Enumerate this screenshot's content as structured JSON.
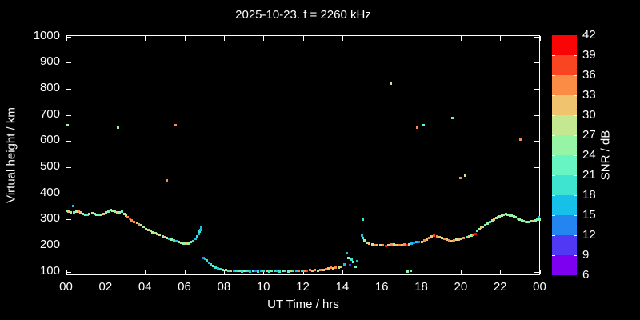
{
  "colors": {
    "background": "#000000",
    "foreground": "#ffffff"
  },
  "chart_data": {
    "type": "scatter",
    "title": "2025-10-23. f = 2260 kHz",
    "xlabel": "UT Time / hrs",
    "ylabel": "Virtual height / km",
    "xlim": [
      0,
      24
    ],
    "ylim": [
      85,
      1000
    ],
    "grid": "off",
    "x_tick_pos": [
      0,
      2,
      4,
      6,
      8,
      10,
      12,
      14,
      16,
      18,
      20,
      22,
      24
    ],
    "x_tick_labels": [
      "00",
      "02",
      "04",
      "06",
      "08",
      "10",
      "12",
      "14",
      "16",
      "18",
      "20",
      "22",
      "00"
    ],
    "y_tick_pos": [
      100,
      200,
      300,
      400,
      500,
      600,
      700,
      800,
      900,
      1000
    ],
    "y_tick_labels": [
      "100",
      "200",
      "300",
      "400",
      "500",
      "600",
      "700",
      "800",
      "900",
      "1000"
    ],
    "colorbar": {
      "label": "SNR / dB",
      "min": 6,
      "max": 42,
      "tick_labels": [
        "6",
        "9",
        "12",
        "15",
        "18",
        "21",
        "24",
        "27",
        "30",
        "33",
        "36",
        "39",
        "42"
      ],
      "segment_colors": [
        "#7d00f0",
        "#5038f5",
        "#2585f0",
        "#17c0e8",
        "#3ee4d0",
        "#68f5c4",
        "#96f5a5",
        "#c3e891",
        "#f0c46e",
        "#fa8c46",
        "#fa4523",
        "#fa0505"
      ]
    },
    "points_format": [
      "ut_hours",
      "virtual_height_km",
      "snr_band_index"
    ],
    "points": [
      [
        0.0,
        334,
        6
      ],
      [
        0.1,
        331,
        8
      ],
      [
        0.22,
        328,
        6
      ],
      [
        0.33,
        350,
        3
      ],
      [
        0.35,
        326,
        5
      ],
      [
        0.48,
        330,
        7
      ],
      [
        0.6,
        331,
        9
      ],
      [
        0.7,
        328,
        8
      ],
      [
        0.82,
        322,
        6
      ],
      [
        0.93,
        317,
        5
      ],
      [
        1.05,
        319,
        4
      ],
      [
        1.15,
        322,
        6
      ],
      [
        1.28,
        324,
        7
      ],
      [
        1.4,
        322,
        5
      ],
      [
        1.52,
        319,
        6
      ],
      [
        1.63,
        317,
        5
      ],
      [
        1.75,
        318,
        6
      ],
      [
        1.88,
        320,
        8
      ],
      [
        2.0,
        326,
        6
      ],
      [
        2.1,
        331,
        5
      ],
      [
        2.22,
        336,
        6
      ],
      [
        2.32,
        333,
        7
      ],
      [
        2.45,
        330,
        6
      ],
      [
        2.55,
        328,
        8
      ],
      [
        2.68,
        327,
        6
      ],
      [
        2.8,
        329,
        5
      ],
      [
        2.9,
        322,
        7
      ],
      [
        3.0,
        316,
        6
      ],
      [
        3.1,
        308,
        9
      ],
      [
        3.2,
        302,
        10
      ],
      [
        3.3,
        296,
        9
      ],
      [
        3.42,
        291,
        9
      ],
      [
        3.55,
        286,
        8
      ],
      [
        3.65,
        282,
        9
      ],
      [
        3.78,
        278,
        7
      ],
      [
        3.9,
        271,
        6
      ],
      [
        4.0,
        264,
        7
      ],
      [
        4.12,
        259,
        8
      ],
      [
        4.25,
        255,
        6
      ],
      [
        4.35,
        251,
        7
      ],
      [
        4.48,
        247,
        6
      ],
      [
        4.6,
        243,
        8
      ],
      [
        4.72,
        240,
        7
      ],
      [
        4.85,
        236,
        6
      ],
      [
        4.95,
        232,
        8
      ],
      [
        5.08,
        229,
        7
      ],
      [
        5.2,
        226,
        3
      ],
      [
        5.32,
        222,
        6
      ],
      [
        5.45,
        219,
        4
      ],
      [
        5.55,
        216,
        3
      ],
      [
        5.68,
        213,
        6
      ],
      [
        5.8,
        210,
        7
      ],
      [
        5.92,
        208,
        6
      ],
      [
        6.05,
        206,
        8
      ],
      [
        6.18,
        208,
        6
      ],
      [
        6.3,
        212,
        5
      ],
      [
        6.42,
        218,
        4
      ],
      [
        6.52,
        226,
        3
      ],
      [
        6.6,
        235,
        4
      ],
      [
        6.67,
        243,
        3
      ],
      [
        6.72,
        252,
        4
      ],
      [
        6.76,
        260,
        3
      ],
      [
        6.8,
        268,
        3
      ],
      [
        6.95,
        152,
        2
      ],
      [
        7.02,
        148,
        3
      ],
      [
        7.1,
        142,
        4
      ],
      [
        7.2,
        135,
        3
      ],
      [
        7.3,
        128,
        4
      ],
      [
        7.42,
        122,
        5
      ],
      [
        7.53,
        117,
        4
      ],
      [
        7.65,
        112,
        3
      ],
      [
        7.78,
        109,
        4
      ],
      [
        7.92,
        107,
        5
      ],
      [
        8.05,
        105,
        6
      ],
      [
        8.2,
        104,
        4
      ],
      [
        8.33,
        103,
        8
      ],
      [
        8.47,
        104,
        3
      ],
      [
        8.6,
        102,
        4
      ],
      [
        8.74,
        103,
        5
      ],
      [
        8.88,
        101,
        4
      ],
      [
        9.02,
        102,
        6
      ],
      [
        9.15,
        103,
        4
      ],
      [
        9.29,
        101,
        3
      ],
      [
        9.43,
        102,
        5
      ],
      [
        9.57,
        103,
        2
      ],
      [
        9.7,
        101,
        4
      ],
      [
        9.84,
        102,
        3
      ],
      [
        9.98,
        103,
        4
      ],
      [
        10.12,
        102,
        8
      ],
      [
        10.25,
        101,
        4
      ],
      [
        10.39,
        102,
        5
      ],
      [
        10.53,
        103,
        4
      ],
      [
        10.66,
        102,
        3
      ],
      [
        10.8,
        101,
        4
      ],
      [
        10.94,
        103,
        6
      ],
      [
        11.08,
        102,
        4
      ],
      [
        11.21,
        101,
        5
      ],
      [
        11.35,
        103,
        8
      ],
      [
        11.49,
        102,
        4
      ],
      [
        11.62,
        103,
        3
      ],
      [
        11.76,
        102,
        9
      ],
      [
        11.9,
        104,
        4
      ],
      [
        12.04,
        103,
        9
      ],
      [
        12.17,
        104,
        10
      ],
      [
        12.31,
        105,
        9
      ],
      [
        12.45,
        104,
        8
      ],
      [
        12.58,
        105,
        9
      ],
      [
        12.72,
        104,
        7
      ],
      [
        12.86,
        106,
        9
      ],
      [
        13.0,
        105,
        8
      ],
      [
        13.12,
        108,
        9
      ],
      [
        13.25,
        112,
        8
      ],
      [
        13.38,
        115,
        9
      ],
      [
        13.5,
        114,
        8
      ],
      [
        13.64,
        117,
        9
      ],
      [
        13.78,
        116,
        7
      ],
      [
        13.9,
        119,
        8
      ],
      [
        14.05,
        128,
        3
      ],
      [
        14.18,
        171,
        3
      ],
      [
        14.28,
        151,
        6
      ],
      [
        14.35,
        124,
        1
      ],
      [
        14.45,
        146,
        4
      ],
      [
        14.52,
        136,
        6
      ],
      [
        14.62,
        120,
        5
      ],
      [
        14.72,
        141,
        3
      ],
      [
        14.95,
        238,
        3
      ],
      [
        15.0,
        300,
        4
      ],
      [
        15.02,
        229,
        4
      ],
      [
        15.08,
        221,
        7
      ],
      [
        15.12,
        216,
        6
      ],
      [
        15.2,
        209,
        6
      ],
      [
        15.33,
        206,
        8
      ],
      [
        15.47,
        203,
        7
      ],
      [
        15.6,
        201,
        9
      ],
      [
        15.74,
        200,
        8
      ],
      [
        15.88,
        202,
        7
      ],
      [
        16.02,
        200,
        9
      ],
      [
        16.18,
        199,
        11
      ],
      [
        16.3,
        202,
        8
      ],
      [
        16.44,
        204,
        9
      ],
      [
        16.58,
        203,
        7
      ],
      [
        16.72,
        201,
        8
      ],
      [
        16.86,
        200,
        9
      ],
      [
        17.0,
        202,
        8
      ],
      [
        17.1,
        204,
        9
      ],
      [
        17.22,
        202,
        11
      ],
      [
        17.35,
        205,
        8
      ],
      [
        17.48,
        208,
        3
      ],
      [
        17.6,
        211,
        2
      ],
      [
        17.72,
        213,
        3
      ],
      [
        17.85,
        212,
        2
      ],
      [
        18.0,
        215,
        8
      ],
      [
        18.12,
        219,
        9
      ],
      [
        18.25,
        224,
        8
      ],
      [
        18.38,
        230,
        9
      ],
      [
        18.5,
        234,
        8
      ],
      [
        18.62,
        237,
        10
      ],
      [
        18.75,
        235,
        9
      ],
      [
        18.88,
        232,
        8
      ],
      [
        19.0,
        228,
        7
      ],
      [
        19.12,
        225,
        9
      ],
      [
        19.25,
        222,
        8
      ],
      [
        19.38,
        220,
        9
      ],
      [
        19.5,
        218,
        8
      ],
      [
        19.62,
        220,
        9
      ],
      [
        19.75,
        222,
        7
      ],
      [
        19.88,
        224,
        8
      ],
      [
        20.0,
        227,
        6
      ],
      [
        20.12,
        230,
        9
      ],
      [
        20.25,
        233,
        5
      ],
      [
        20.38,
        236,
        8
      ],
      [
        20.5,
        239,
        6
      ],
      [
        20.6,
        241,
        9
      ],
      [
        20.7,
        245,
        11
      ],
      [
        20.8,
        255,
        5
      ],
      [
        20.9,
        263,
        6
      ],
      [
        21.0,
        268,
        8
      ],
      [
        21.1,
        272,
        6
      ],
      [
        21.2,
        278,
        5
      ],
      [
        21.32,
        283,
        6
      ],
      [
        21.45,
        290,
        4
      ],
      [
        21.55,
        295,
        6
      ],
      [
        21.65,
        300,
        8
      ],
      [
        21.75,
        305,
        6
      ],
      [
        21.85,
        309,
        5
      ],
      [
        21.95,
        312,
        6
      ],
      [
        22.05,
        315,
        7
      ],
      [
        22.15,
        318,
        6
      ],
      [
        22.25,
        320,
        5
      ],
      [
        22.35,
        318,
        6
      ],
      [
        22.45,
        316,
        8
      ],
      [
        22.55,
        314,
        6
      ],
      [
        22.65,
        311,
        7
      ],
      [
        22.75,
        307,
        6
      ],
      [
        22.85,
        303,
        9
      ],
      [
        22.95,
        299,
        6
      ],
      [
        23.05,
        296,
        8
      ],
      [
        23.15,
        293,
        6
      ],
      [
        23.25,
        291,
        9
      ],
      [
        23.35,
        289,
        6
      ],
      [
        23.45,
        290,
        5
      ],
      [
        23.55,
        292,
        6
      ],
      [
        23.65,
        294,
        8
      ],
      [
        23.75,
        296,
        6
      ],
      [
        23.85,
        300,
        5
      ],
      [
        23.9,
        309,
        3
      ],
      [
        23.95,
        298,
        6
      ],
      [
        0.05,
        660,
        6
      ],
      [
        2.6,
        650,
        6
      ],
      [
        5.05,
        450,
        9
      ],
      [
        5.5,
        660,
        9
      ],
      [
        16.4,
        820,
        7
      ],
      [
        17.75,
        650,
        9
      ],
      [
        18.1,
        660,
        5
      ],
      [
        19.55,
        688,
        5
      ],
      [
        19.95,
        459,
        9
      ],
      [
        20.2,
        466,
        7
      ],
      [
        23.0,
        605,
        9
      ],
      [
        17.28,
        100,
        6
      ],
      [
        17.42,
        104,
        5
      ]
    ]
  }
}
